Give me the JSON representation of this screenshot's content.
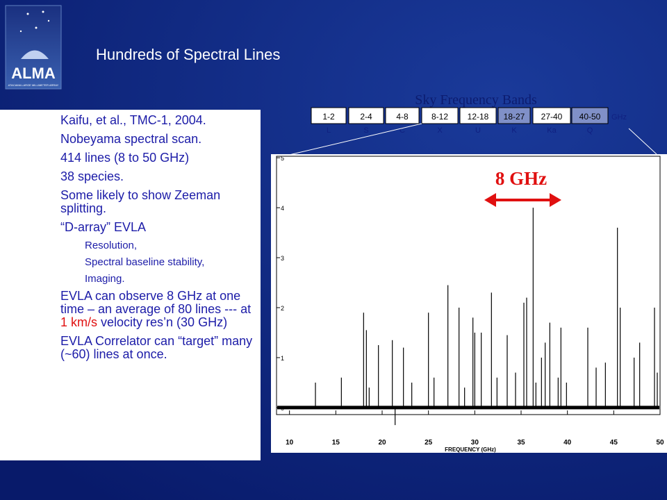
{
  "logo": {
    "text": "ALMA",
    "subtext": "ATACAMA LARGE MILLIMETER ARRAY"
  },
  "title": "Hundreds of Spectral Lines",
  "bands": {
    "title": "Sky Frequency Bands",
    "unit": "GHz",
    "ranges": [
      "1-2",
      "2-4",
      "4-8",
      "8-12",
      "12-18",
      "18-27",
      "27-40",
      "40-50"
    ],
    "letters": [
      "L",
      "S",
      "C",
      "X",
      "U",
      "K",
      "Ka",
      "Q"
    ]
  },
  "bullets": [
    {
      "text": "Kaifu, et al., TMC-1, 2004."
    },
    {
      "text": "Nobeyama spectral scan."
    },
    {
      "text": "414 lines (8 to 50 GHz)"
    },
    {
      "text": "38 species."
    },
    {
      "text": "Some likely to show Zeeman splitting."
    },
    {
      "text": "“D-array” EVLA",
      "sub": [
        "Resolution,",
        "Spectral baseline stability,",
        "Imaging."
      ]
    },
    {
      "text": "EVLA can observe 8 GHz at one time – an average of 80 lines --- at ",
      "highlight": "1 km/s",
      "after": " velocity res’n (30 GHz)"
    },
    {
      "text": "EVLA Correlator can “target” many (~60) lines at once."
    }
  ],
  "spectrum": {
    "xlabel": "FREQUENCY (GHz)",
    "annotation": "8 GHz",
    "xlim": [
      8.6,
      50
    ],
    "ylim": [
      -0.14,
      5.03
    ],
    "xticks": [
      10,
      15,
      20,
      25,
      30,
      35,
      40,
      45,
      50
    ],
    "yticks": [
      0,
      1,
      2,
      3,
      4,
      5
    ],
    "lines": {
      "x": [
        12.8,
        15.6,
        18.0,
        18.3,
        18.6,
        19.6,
        21.1,
        21.4,
        22.3,
        23.2,
        25.0,
        25.6,
        27.1,
        28.3,
        28.9,
        29.8,
        30.0,
        30.7,
        31.8,
        32.4,
        33.5,
        34.4,
        35.3,
        35.6,
        36.3,
        36.6,
        37.2,
        37.6,
        38.1,
        39.0,
        39.3,
        39.9,
        42.2,
        43.1,
        44.1,
        45.4,
        45.7,
        47.2,
        47.8,
        49.4,
        49.7
      ],
      "y": [
        0.5,
        0.6,
        1.9,
        1.55,
        0.4,
        1.25,
        1.35,
        -0.35,
        1.2,
        0.5,
        1.9,
        0.6,
        2.45,
        2.0,
        0.4,
        1.8,
        1.5,
        1.5,
        2.3,
        0.6,
        1.45,
        0.7,
        2.1,
        2.2,
        4.0,
        0.5,
        1.0,
        1.3,
        1.7,
        0.6,
        1.6,
        0.5,
        1.6,
        0.8,
        0.9,
        3.6,
        2.0,
        1.0,
        1.3,
        2.0,
        0.7
      ]
    }
  }
}
